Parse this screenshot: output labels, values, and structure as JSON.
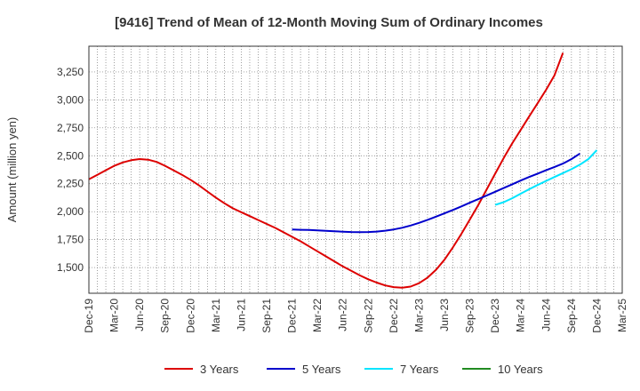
{
  "chart_data": {
    "type": "line",
    "title": "[9416]  Trend of Mean of 12-Month Moving Sum of Ordinary Incomes",
    "xlabel": "",
    "ylabel": "Amount (million yen)",
    "ylim": [
      1270,
      3480
    ],
    "yticks": [
      1500,
      1750,
      2000,
      2250,
      2500,
      2750,
      3000,
      3250
    ],
    "ytick_labels": [
      "1,500",
      "1,750",
      "2,000",
      "2,250",
      "2,500",
      "2,750",
      "3,000",
      "3,250"
    ],
    "x_categories": [
      "Dec-19",
      "Mar-20",
      "Jun-20",
      "Sep-20",
      "Dec-20",
      "Mar-21",
      "Jun-21",
      "Sep-21",
      "Dec-21",
      "Mar-22",
      "Jun-22",
      "Sep-22",
      "Dec-22",
      "Mar-23",
      "Jun-23",
      "Sep-23",
      "Dec-23",
      "Mar-24",
      "Jun-24",
      "Sep-24",
      "Dec-24",
      "Mar-25"
    ],
    "grid": true,
    "legend_position": "bottom",
    "series": [
      {
        "name": "3 Years",
        "color": "#dd0000",
        "start_index": 0,
        "values": [
          2290,
          2330,
          2370,
          2410,
          2440,
          2460,
          2470,
          2465,
          2445,
          2410,
          2370,
          2330,
          2285,
          2235,
          2180,
          2125,
          2075,
          2030,
          1995,
          1960,
          1925,
          1890,
          1855,
          1815,
          1775,
          1735,
          1690,
          1645,
          1600,
          1555,
          1510,
          1470,
          1430,
          1395,
          1365,
          1340,
          1325,
          1320,
          1330,
          1360,
          1410,
          1480,
          1570,
          1680,
          1800,
          1930,
          2060,
          2200,
          2340,
          2480,
          2610,
          2730,
          2850,
          2970,
          3090,
          3220,
          3420
        ]
      },
      {
        "name": "5 Years",
        "color": "#0000cc",
        "start_index": 24,
        "values": [
          1840,
          1838,
          1836,
          1833,
          1829,
          1825,
          1821,
          1818,
          1817,
          1818,
          1822,
          1830,
          1841,
          1856,
          1876,
          1900,
          1927,
          1955,
          1985,
          2015,
          2047,
          2080,
          2112,
          2145,
          2178,
          2211,
          2245,
          2278,
          2310,
          2340,
          2370,
          2400,
          2430,
          2470,
          2520
        ]
      },
      {
        "name": "7 Years",
        "color": "#00e5ff",
        "start_index": 48,
        "values": [
          2060,
          2085,
          2120,
          2160,
          2200,
          2238,
          2275,
          2310,
          2345,
          2380,
          2420,
          2470,
          2550
        ]
      },
      {
        "name": "10 Years",
        "color": "#228b22",
        "start_index": 0,
        "values": []
      }
    ]
  }
}
